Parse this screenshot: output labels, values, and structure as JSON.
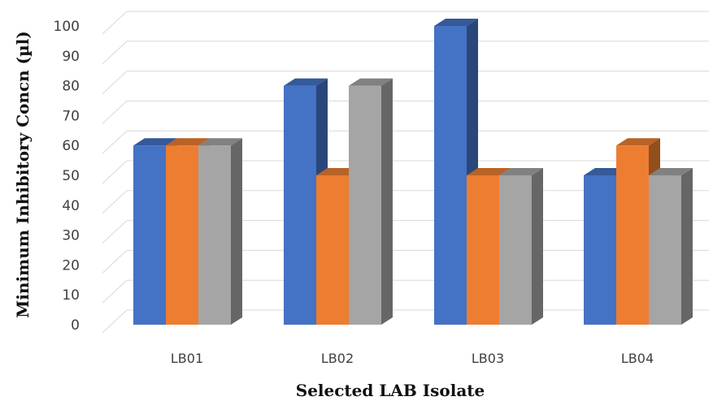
{
  "chart_data": {
    "type": "bar",
    "style": "3d-clustered-column",
    "title": "",
    "xlabel": "Selected LAB Isolate",
    "ylabel": "Minimum Inhibitory Concn (µl)",
    "ylim": [
      0,
      100
    ],
    "yticks": [
      0,
      10,
      20,
      30,
      40,
      50,
      60,
      70,
      80,
      90,
      100
    ],
    "grid": true,
    "legend": "none",
    "categories": [
      "LB01",
      "LB02",
      "LB03",
      "LB04"
    ],
    "series": [
      {
        "values": [
          60,
          80,
          100,
          50
        ],
        "color": "#4472C4"
      },
      {
        "values": [
          60,
          50,
          50,
          60
        ],
        "color": "#ED7D31"
      },
      {
        "values": [
          60,
          80,
          50,
          50
        ],
        "color": "#A5A5A5"
      }
    ]
  }
}
